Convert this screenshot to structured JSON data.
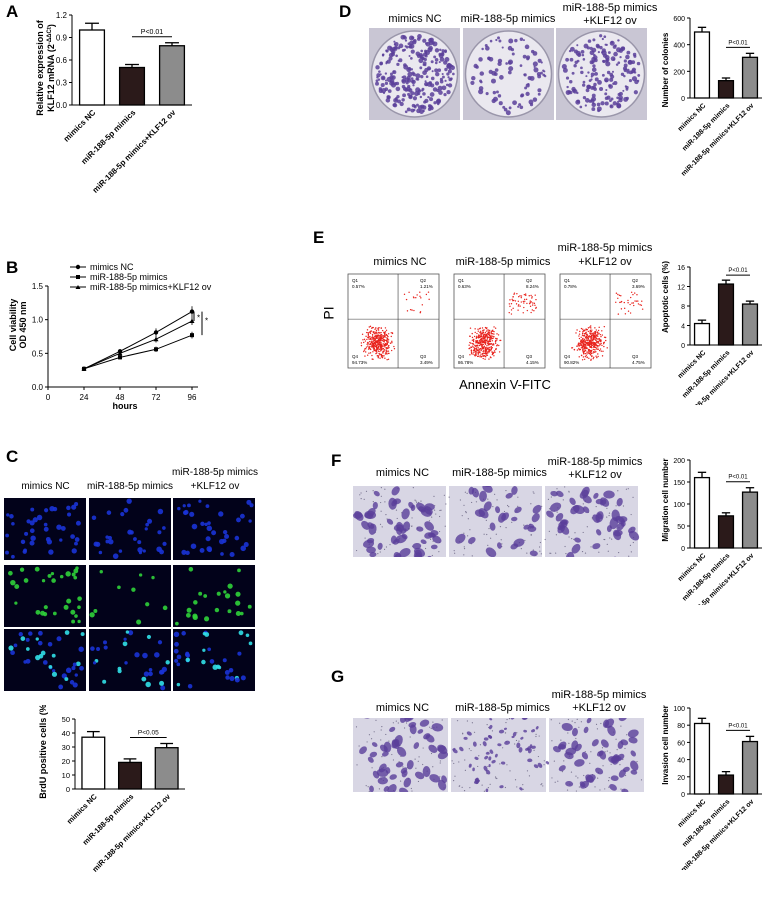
{
  "panels": {
    "A": {
      "letter": "A",
      "ylabel": "Relative expression of",
      "ylabel2": "KLF12 mRNA (2",
      "ylabel_sup": "-ΔΔCt",
      "ylabel_tail": ")",
      "yticks": [
        "0.0",
        "0.3",
        "0.6",
        "0.9",
        "1.2"
      ],
      "categories": [
        "mimics NC",
        "miR-188-5p mimics",
        "miR-188-5p mimics+KLF12 ov"
      ],
      "sig": "P<0.01"
    },
    "B": {
      "letter": "B",
      "ylabel": "Cell viability",
      "ylabel2": "OD 450 nm",
      "xlabel": "hours",
      "yticks": [
        "0.0",
        "0.5",
        "1.0",
        "1.5"
      ],
      "xticks": [
        "0",
        "24",
        "48",
        "72",
        "96"
      ],
      "legend": [
        "mimics NC",
        "miR-188-5p mimics",
        "miR-188-5p mimics+KLF12 ov"
      ],
      "stars": [
        "*",
        "*"
      ]
    },
    "C": {
      "letter": "C",
      "col1": "mimics NC",
      "col2": "miR-188-5p mimics",
      "col3a": "miR-188-5p mimics",
      "col3b": "+KLF12 ov",
      "ylabel": "BrdU positive cells (%)",
      "yticks": [
        "0",
        "10",
        "20",
        "30",
        "40",
        "50"
      ],
      "categories": [
        "mimics NC",
        "miR-188-5p mimics",
        "miR-188-5p mimics+KLF12 ov"
      ],
      "sig": "P<0.05"
    },
    "D": {
      "letter": "D",
      "col1": "mimics NC",
      "col2": "miR-188-5p mimics",
      "col3a": "miR-188-5p mimics",
      "col3b": "+KLF12 ov",
      "ylabel": "Number of colonies",
      "yticks": [
        "0",
        "200",
        "400",
        "600"
      ],
      "categories": [
        "mimics NC",
        "miR-188-5p mimics",
        "miR-188-5p mimics+KLF12 ov"
      ],
      "sig": "P<0.01"
    },
    "E": {
      "letter": "E",
      "col1": "mimics NC",
      "col2": "miR-188-5p mimics",
      "col3a": "miR-188-5p mimics",
      "col3b": "+KLF12 ov",
      "flow_ylabel": "PI",
      "flow_xlabel": "Annexin V-FITC",
      "quadrants": [
        {
          "q1": "Q1",
          "q1v": "0.57%",
          "q2": "Q2",
          "q2v": "1.21%",
          "q3": "Q3",
          "q3v": "3.49%",
          "q4": "Q4",
          "q4v": "94.73%"
        },
        {
          "q1": "Q1",
          "q1v": "0.63%",
          "q2": "Q2",
          "q2v": "8.24%",
          "q3": "Q3",
          "q3v": "4.15%",
          "q4": "Q4",
          "q4v": "86.78%"
        },
        {
          "q1": "Q1",
          "q1v": "0.78%",
          "q2": "Q2",
          "q2v": "3.69%",
          "q3": "Q3",
          "q3v": "4.75%",
          "q4": "Q4",
          "q4v": "90.82%"
        }
      ],
      "ylabel": "Apoptotic cells (%)",
      "yticks": [
        "0",
        "4",
        "8",
        "12",
        "16"
      ],
      "categories": [
        "mimics NC",
        "miR-188-5p mimics",
        "miR-188-5p mimics+KLF12 ov"
      ],
      "sig": "P<0.01"
    },
    "F": {
      "letter": "F",
      "col1": "mimics NC",
      "col2": "miR-188-5p mimics",
      "col3a": "miR-188-5p mimics",
      "col3b": "+KLF12 ov",
      "ylabel": "Migration cell number",
      "yticks": [
        "0",
        "50",
        "100",
        "150",
        "200"
      ],
      "categories": [
        "mimics NC",
        "miR-188-5p mimics",
        "miR-188-5p mimics+KLF12 ov"
      ],
      "sig": "P<0.01"
    },
    "G": {
      "letter": "G",
      "col1": "mimics NC",
      "col2": "miR-188-5p mimics",
      "col3a": "miR-188-5p mimics",
      "col3b": "+KLF12 ov",
      "ylabel": "Invasion cell number",
      "yticks": [
        "0",
        "20",
        "40",
        "60",
        "80",
        "100"
      ],
      "categories": [
        "mimics NC",
        "miR-188-5p mimics",
        "miR-188-5p mimics+KLF12 ov"
      ],
      "sig": "P<0.01"
    }
  },
  "colors": {
    "nc": "#ffffff",
    "mimics": "#2b1a1a",
    "ov": "#8c8c8c",
    "crystal_violet": "#5a3f9a",
    "dapi": "#1a33d6",
    "brdu": "#2fd13a",
    "flow": "#e8231d"
  },
  "chart_data": [
    {
      "panel": "A",
      "type": "bar",
      "categories": [
        "mimics NC",
        "miR-188-5p mimics",
        "miR-188-5p mimics+KLF12 ov"
      ],
      "values": [
        1.0,
        0.5,
        0.79
      ],
      "errors": [
        0.09,
        0.04,
        0.04
      ],
      "ylim": [
        0,
        1.2
      ],
      "ylabel": "Relative expression of KLF12 mRNA (2-ΔΔCt)",
      "annotation": "P<0.01"
    },
    {
      "panel": "B",
      "type": "line",
      "x": [
        24,
        48,
        72,
        96
      ],
      "xlim": [
        0,
        100
      ],
      "ylim": [
        0,
        1.5
      ],
      "xlabel": "hours",
      "ylabel": "Cell viability OD 450 nm",
      "series": [
        {
          "name": "mimics NC",
          "values": [
            0.27,
            0.53,
            0.81,
            1.12
          ],
          "errors": [
            0.02,
            0.03,
            0.06,
            0.08
          ]
        },
        {
          "name": "miR-188-5p mimics",
          "values": [
            0.27,
            0.44,
            0.56,
            0.77
          ],
          "errors": [
            0.02,
            0.03,
            0.04,
            0.05
          ]
        },
        {
          "name": "miR-188-5p mimics+KLF12 ov",
          "values": [
            0.27,
            0.5,
            0.71,
            0.98
          ],
          "errors": [
            0.02,
            0.03,
            0.05,
            0.06
          ]
        }
      ]
    },
    {
      "panel": "C",
      "type": "bar",
      "categories": [
        "mimics NC",
        "miR-188-5p mimics",
        "miR-188-5p mimics+KLF12 ov"
      ],
      "values": [
        37,
        19,
        29.5
      ],
      "errors": [
        4,
        2.5,
        3
      ],
      "ylim": [
        0,
        50
      ],
      "ylabel": "BrdU positive cells (%)",
      "annotation": "P<0.05"
    },
    {
      "panel": "D",
      "type": "bar",
      "categories": [
        "mimics NC",
        "miR-188-5p mimics",
        "miR-188-5p mimics+KLF12 ov"
      ],
      "values": [
        495,
        130,
        305
      ],
      "errors": [
        35,
        20,
        30
      ],
      "ylim": [
        0,
        600
      ],
      "ylabel": "Number of colonies",
      "annotation": "P<0.01"
    },
    {
      "panel": "E",
      "type": "bar",
      "categories": [
        "mimics NC",
        "miR-188-5p mimics",
        "miR-188-5p mimics+KLF12 ov"
      ],
      "values": [
        4.4,
        12.5,
        8.4
      ],
      "errors": [
        0.7,
        0.8,
        0.6
      ],
      "ylim": [
        0,
        16
      ],
      "ylabel": "Apoptotic cells (%)",
      "annotation": "P<0.01"
    },
    {
      "panel": "F",
      "type": "bar",
      "categories": [
        "mimics NC",
        "miR-188-5p mimics",
        "miR-188-5p mimics+KLF12 ov"
      ],
      "values": [
        160,
        73,
        127
      ],
      "errors": [
        12,
        7,
        10
      ],
      "ylim": [
        0,
        200
      ],
      "ylabel": "Migration cell number",
      "annotation": "P<0.01"
    },
    {
      "panel": "G",
      "type": "bar",
      "categories": [
        "mimics NC",
        "miR-188-5p mimics",
        "miR-188-5p mimics+KLF12 ov"
      ],
      "values": [
        82,
        22,
        61
      ],
      "errors": [
        6,
        4,
        6
      ],
      "ylim": [
        0,
        100
      ],
      "ylabel": "Invasion cell number",
      "annotation": "P<0.01"
    }
  ]
}
